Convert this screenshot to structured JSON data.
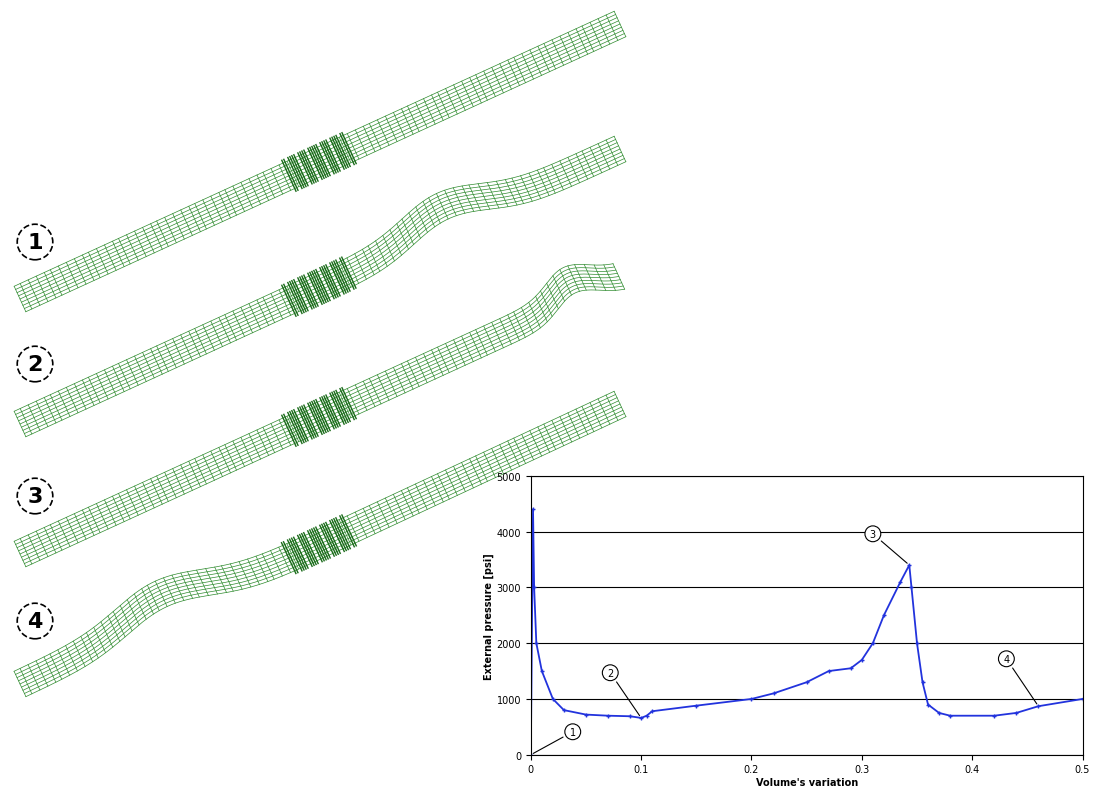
{
  "illustration": {
    "labels": [
      "1",
      "2",
      "3",
      "4"
    ]
  },
  "chart_data": {
    "type": "line",
    "xlabel": "Volume's variation",
    "ylabel": "External pressure [psi]",
    "x": [
      0,
      0.002,
      0.003,
      0.005,
      0.01,
      0.02,
      0.03,
      0.05,
      0.07,
      0.09,
      0.1,
      0.105,
      0.11,
      0.15,
      0.2,
      0.22,
      0.25,
      0.27,
      0.29,
      0.3,
      0.31,
      0.32,
      0.335,
      0.343,
      0.345,
      0.35,
      0.355,
      0.36,
      0.37,
      0.38,
      0.42,
      0.44,
      0.46,
      0.5
    ],
    "values": [
      0,
      4400,
      3000,
      2000,
      1500,
      1000,
      800,
      720,
      700,
      690,
      660,
      700,
      780,
      880,
      1000,
      1100,
      1300,
      1500,
      1550,
      1700,
      2000,
      2500,
      3100,
      3400,
      3000,
      2000,
      1300,
      900,
      750,
      700,
      700,
      750,
      870,
      1000
    ],
    "color": "#2233dd",
    "marker": "+",
    "line_style": "solid",
    "xlim": [
      0,
      0.5
    ],
    "xticks": [
      0,
      0.1,
      0.2,
      0.3,
      0.4,
      0.5
    ],
    "ylim": [
      0,
      5000
    ],
    "yticks": [
      0,
      1000,
      2000,
      3000,
      4000,
      5000
    ],
    "grid": true,
    "annotations": [
      {
        "label": "1",
        "x": 0,
        "y": 0,
        "text_x": 0.038,
        "text_y": 412
      },
      {
        "label": "2",
        "x": 0.1,
        "y": 660,
        "text_x": 0.072,
        "text_y": 1470
      },
      {
        "label": "3",
        "x": 0.343,
        "y": 3400,
        "text_x": 0.31,
        "text_y": 3960
      },
      {
        "label": "4",
        "x": 0.46,
        "y": 870,
        "text_x": 0.431,
        "text_y": 1720
      }
    ]
  }
}
